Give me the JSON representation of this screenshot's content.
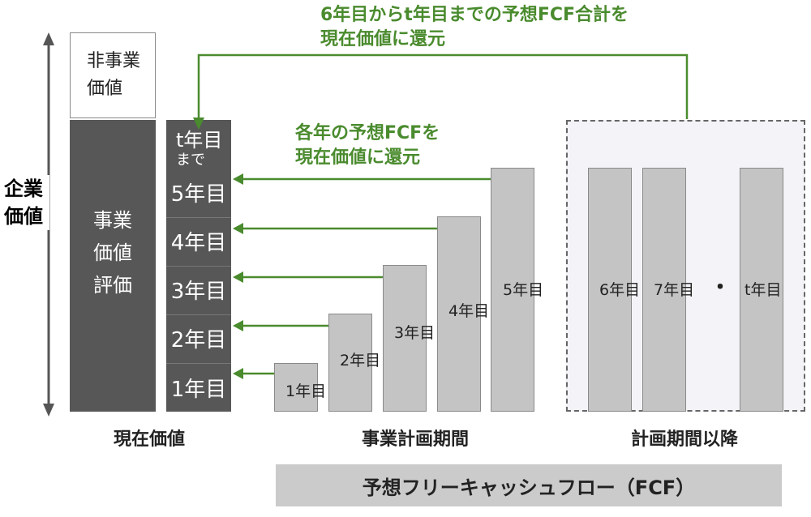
{
  "axis": {
    "label_line1": "企業",
    "label_line2": "価値"
  },
  "present_value": {
    "non_business_line1": "非事業",
    "non_business_line2": "価値",
    "business_line1": "事業",
    "business_line2": "価値",
    "business_line3": "評価",
    "stack_cells": [
      "t年目\nまで",
      "5年目",
      "4年目",
      "3年目",
      "2年目",
      "1年目"
    ]
  },
  "annotations": {
    "top_line1": "6年目からt年目までの予想FCF合計を",
    "top_line2": "現在価値に還元",
    "mid_line1": "各年の予想FCFを",
    "mid_line2": "現在価値に還元"
  },
  "plan_bars": [
    "1年目",
    "2年目",
    "3年目",
    "4年目",
    "5年目"
  ],
  "post_bars": [
    "6年目",
    "7年目",
    "t年目"
  ],
  "ellipsis": "・",
  "categories": {
    "present": "現在価値",
    "plan": "事業計画期間",
    "post": "計画期間以降"
  },
  "footer_banner": "予想フリーキャッシュフロー（FCF）",
  "colors": {
    "green": "#4a8b2e",
    "dark": "#575757",
    "bar": "#c4c4c4"
  }
}
